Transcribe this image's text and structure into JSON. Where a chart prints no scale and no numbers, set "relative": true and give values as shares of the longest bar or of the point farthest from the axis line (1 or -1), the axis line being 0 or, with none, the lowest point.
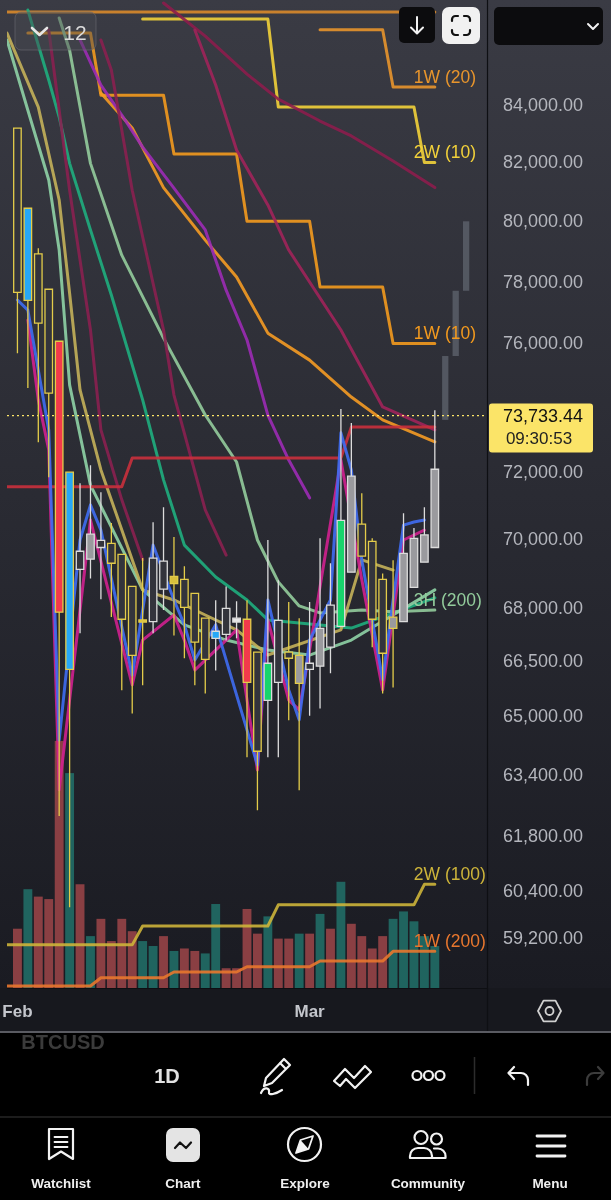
{
  "chart_data": [
    {
      "type": "candlestick",
      "xlim": [
        "--01-31",
        "--03-18"
      ],
      "xticks": [
        {
          "value": "--02-01",
          "label": "Feb"
        },
        {
          "value": "--03-01",
          "label": "Mar"
        }
      ],
      "ylim": [
        57980,
        87790
      ],
      "log": true,
      "yticks": [
        {
          "value": 84000,
          "label": "84,000.00"
        },
        {
          "value": 82000,
          "label": "82,000.00"
        },
        {
          "value": 80000,
          "label": "80,000.00"
        },
        {
          "value": 78000,
          "label": "78,000.00"
        },
        {
          "value": 76000,
          "label": "76,000.00"
        },
        {
          "value": 72000,
          "label": "72,000.00"
        },
        {
          "value": 70000,
          "label": "70,000.00"
        },
        {
          "value": 68000,
          "label": "68,000.00"
        },
        {
          "value": 66500,
          "label": "66,500.00"
        },
        {
          "value": 65000,
          "label": "65,000.00"
        },
        {
          "value": 63400,
          "label": "63,400.00"
        },
        {
          "value": 61800,
          "label": "61,800.00"
        },
        {
          "value": 60400,
          "label": "60,400.00"
        },
        {
          "value": 59200,
          "label": "59,200.00"
        }
      ],
      "ref_lines": [
        {
          "axis": "y",
          "value": 73733.44,
          "label": "73,733.44",
          "color": "#fbe468",
          "line_style": "dotted"
        }
      ],
      "annotations": [
        "12",
        "09:30:53",
        "BTCUSD",
        "1D",
        "Watchlist",
        "Chart",
        "Explore",
        "Community",
        "Menu"
      ],
      "series": [
        {
          "type": "line",
          "color": "#d98a2b",
          "x": [
            "--01-31",
            "--03-13"
          ],
          "values": [
            87350,
            87350
          ]
        },
        {
          "type": "line",
          "name": "1W (20)",
          "color": "#e8952c",
          "x": [
            "--03-02",
            "--03-08",
            "--03-09",
            "--03-13"
          ],
          "values": [
            86700,
            86700,
            84640,
            84640
          ]
        },
        {
          "type": "line",
          "name": "2W (10)",
          "color": "#f2d13a",
          "x": [
            "--02-13",
            "--02-25",
            "--02-26",
            "--03-11",
            "--03-12",
            "--03-13"
          ],
          "values": [
            87090,
            87090,
            83930,
            83930,
            82000,
            82000
          ]
        },
        {
          "type": "line",
          "name": "1W (10)",
          "color": "#f39a1e",
          "x": [
            "--02-02",
            "--02-08",
            "--02-09",
            "--02-15",
            "--02-16",
            "--02-22",
            "--02-23",
            "--03-01",
            "--03-02",
            "--03-08",
            "--03-09",
            "--03-13"
          ],
          "values": [
            86580,
            86580,
            84350,
            84350,
            82290,
            82290,
            80000,
            80000,
            77820,
            77820,
            76000,
            76000
          ]
        },
        {
          "type": "line",
          "color": "#8c1d4c",
          "x": [
            "--02-15",
            "--02-19",
            "--02-23",
            "--02-26",
            "--03-02",
            "--03-05",
            "--03-09",
            "--03-13"
          ],
          "values": [
            87680,
            86470,
            85100,
            84210,
            83440,
            82920,
            82050,
            81140
          ]
        },
        {
          "type": "line",
          "color": "#f59b23",
          "x": [
            "--02-09",
            "--02-12",
            "--02-15",
            "--02-19",
            "--02-22",
            "--02-25",
            "--03-01",
            "--03-05",
            "--03-08",
            "--03-13"
          ],
          "values": [
            84430,
            83200,
            81140,
            79370,
            78150,
            76330,
            75470,
            74310,
            73600,
            72920
          ]
        },
        {
          "type": "line",
          "color": "#9c2bb5",
          "x": [
            "--02-07",
            "--02-09",
            "--02-11",
            "--02-13",
            "--02-16",
            "--02-19",
            "--02-21",
            "--02-23",
            "--02-25",
            "--02-27",
            "--03-01"
          ],
          "values": [
            86330,
            84710,
            83650,
            82530,
            81120,
            79710,
            77720,
            76110,
            73750,
            72370,
            71230
          ]
        },
        {
          "type": "line",
          "color": "#1fae7e",
          "x": [
            "--02-02",
            "--02-04",
            "--02-05",
            "--02-06",
            "--02-08",
            "--02-10",
            "--02-13",
            "--02-15",
            "--02-17",
            "--02-20",
            "--02-23",
            "--02-25",
            "--03-05",
            "--03-13"
          ],
          "values": [
            87420,
            84890,
            83580,
            81970,
            79710,
            77560,
            74220,
            71770,
            69830,
            68900,
            68240,
            67670,
            67440,
            68300
          ]
        },
        {
          "type": "line",
          "name": "3H (200)",
          "color": "#93cc9c",
          "x": [
            "--02-05",
            "--02-06",
            "--02-08",
            "--02-11",
            "--02-15",
            "--02-19",
            "--02-22",
            "--02-24",
            "--02-26",
            "--02-28",
            "--03-02",
            "--03-06",
            "--03-09",
            "--03-13"
          ],
          "values": [
            87130,
            85960,
            81970,
            78870,
            76170,
            73750,
            72310,
            69980,
            68760,
            68070,
            67870,
            67950,
            67900,
            67950
          ]
        },
        {
          "type": "line",
          "color": "#8fd3a6",
          "x": [
            "--01-31",
            "--02-02",
            "--02-04",
            "--02-05",
            "--02-06",
            "--02-08",
            "--02-13",
            "--02-17",
            "--02-21",
            "--02-25",
            "--03-01",
            "--03-05",
            "--03-13"
          ],
          "values": [
            86330,
            83820,
            81400,
            79040,
            74690,
            71610,
            68530,
            67530,
            67100,
            66820,
            66680,
            67100,
            68530
          ]
        },
        {
          "type": "line",
          "color": "#c4b15a",
          "x": [
            "--01-31",
            "--02-03",
            "--02-05",
            "--02-06",
            "--02-07",
            "--02-09",
            "--02-13",
            "--02-16",
            "--02-19",
            "--02-22",
            "--02-25",
            "--03-04",
            "--03-06",
            "--03-09"
          ],
          "values": [
            86580,
            83930,
            80720,
            77620,
            74530,
            72070,
            68530,
            68240,
            67810,
            67390,
            66680,
            67390,
            69400,
            69100
          ]
        },
        {
          "type": "line",
          "color": "#8a2050",
          "x": [
            "--02-04",
            "--02-06",
            "--02-08",
            "--02-09",
            "--02-11",
            "--02-13"
          ],
          "values": [
            86690,
            81050,
            76430,
            73290,
            71170,
            69400
          ]
        },
        {
          "type": "line",
          "color": "#8a2050",
          "x": [
            "--02-09",
            "--02-10",
            "--02-12",
            "--02-15",
            "--02-16",
            "--02-19",
            "--02-21"
          ],
          "values": [
            86330,
            85250,
            81050,
            76430,
            74370,
            70870,
            69540
          ]
        },
        {
          "type": "line",
          "color": "#a0245a",
          "x": [
            "--02-18",
            "--02-20",
            "--02-22",
            "--02-25",
            "--02-27",
            "--03-04",
            "--03-08",
            "--03-13"
          ],
          "values": [
            86690,
            84710,
            82430,
            80550,
            79040,
            76430,
            74000,
            73290
          ]
        },
        {
          "type": "line",
          "color": "#c9303c",
          "x": [
            "--01-31",
            "--02-11",
            "--02-12",
            "--03-04",
            "--03-05",
            "--03-13"
          ],
          "values": [
            71560,
            71560,
            72430,
            72430,
            73380,
            73380
          ]
        },
        {
          "type": "line",
          "color": "#d0208f",
          "x": [
            "--02-02",
            "--02-03",
            "--02-04",
            "--02-05",
            "--02-08",
            "--02-12",
            "--02-13",
            "--02-16",
            "--02-17",
            "--02-18",
            "--02-21",
            "--02-22",
            "--02-24",
            "--02-25",
            "--02-27",
            "--02-28",
            "--03-01",
            "--03-04",
            "--03-06",
            "--03-08",
            "--03-10",
            "--03-12"
          ],
          "values": [
            76750,
            74220,
            72680,
            63010,
            70570,
            65850,
            67100,
            67810,
            67100,
            66260,
            67100,
            67390,
            63540,
            67670,
            65430,
            65160,
            66820,
            72370,
            68820,
            65710,
            69980,
            70270
          ]
        },
        {
          "type": "line",
          "color": "#3f6df2",
          "x": [
            "--02-01",
            "--02-02",
            "--02-03",
            "--02-04",
            "--02-05",
            "--02-07",
            "--02-08",
            "--02-09",
            "--02-12",
            "--02-14",
            "--02-16",
            "--02-17",
            "--02-18",
            "--02-20",
            "--02-24",
            "--02-25",
            "--02-27",
            "--02-28",
            "--03-01",
            "--03-03",
            "--03-04",
            "--03-05",
            "--03-06",
            "--03-08",
            "--03-09",
            "--03-10",
            "--03-11",
            "--03-12"
          ],
          "values": [
            77400,
            77070,
            75160,
            73290,
            64340,
            69980,
            71020,
            70270,
            66120,
            69830,
            68240,
            67530,
            66540,
            67530,
            63670,
            68240,
            65710,
            64890,
            67100,
            68240,
            73200,
            72070,
            69400,
            65990,
            68240,
            70420,
            70510,
            70570
          ]
        },
        {
          "type": "line",
          "name": "2W (100)",
          "color": "#cdb43a",
          "x": [
            "--01-31",
            "--02-12",
            "--02-13",
            "--02-25",
            "--02-26",
            "--03-11",
            "--03-12",
            "--03-13"
          ],
          "values": [
            59040,
            59040,
            59510,
            59510,
            60040,
            60040,
            60560,
            60560
          ]
        },
        {
          "type": "line",
          "name": "1W (200)",
          "color": "#e8772e",
          "x": [
            "--01-31",
            "--02-08",
            "--02-09",
            "--02-15",
            "--02-16",
            "--02-22",
            "--02-23",
            "--03-01",
            "--03-02",
            "--03-08",
            "--03-09",
            "--03-13"
          ],
          "values": [
            58030,
            58030,
            58230,
            58230,
            58370,
            58370,
            58500,
            58500,
            58640,
            58640,
            58880,
            58880
          ]
        },
        {
          "type": "bar",
          "color": "#5d616c",
          "x": [
            "--03-14",
            "--03-15",
            "--03-16"
          ],
          "base": [
            73600,
            75600,
            77700
          ],
          "values": [
            2000,
            2100,
            2300
          ]
        },
        {
          "color": "#e3cc4a",
          "x": [
            "--02-01",
            "--02-02",
            "--02-03",
            "--02-04",
            "--02-05",
            "--02-06",
            "--02-10",
            "--02-11",
            "--02-12",
            "--02-13",
            "--02-16",
            "--02-17",
            "--02-18",
            "--02-19",
            "--02-23",
            "--02-24",
            "--02-27",
            "--02-28",
            "--03-06",
            "--03-07",
            "--03-08",
            "--03-09"
          ],
          "ohlc": [
            [
              83190,
              83190,
              75690,
              77650
            ],
            [
              77390,
              80440,
              74590,
              80440
            ],
            [
              78910,
              79100,
              72910,
              76650
            ],
            [
              77750,
              77750,
              71850,
              74430
            ],
            [
              76070,
              76070,
              62320,
              67890
            ],
            [
              66280,
              72000,
              59980,
              72000
            ],
            [
              69880,
              70480,
              67750,
              69300
            ],
            [
              69560,
              69560,
              65700,
              67690
            ],
            [
              68630,
              68630,
              65060,
              66670
            ],
            [
              67670,
              69450,
              65840,
              67610
            ],
            [
              68920,
              70070,
              67230,
              68710
            ],
            [
              68830,
              69210,
              66590,
              68030
            ],
            [
              68430,
              68430,
              65840,
              67040
            ],
            [
              67720,
              67720,
              65610,
              66560
            ],
            [
              67690,
              68230,
              63880,
              65920
            ],
            [
              66760,
              66760,
              62470,
              64040
            ],
            [
              66760,
              68180,
              64880,
              66590
            ],
            [
              65890,
              67720,
              63000,
              66670
            ],
            [
              70450,
              71370,
              69510,
              69510
            ],
            [
              69940,
              70030,
              66900,
              67690
            ],
            [
              68830,
              69000,
              65610,
              66730
            ],
            [
              67430,
              69390,
              65780,
              67750
            ]
          ],
          "colors": [
            "#33343c",
            "#26a8f7",
            "#33343c",
            "#33343c",
            "#f23a4c",
            "#26a8f7",
            "#33343c",
            "#33343c",
            "#33343c",
            "#d8c03c",
            "#d8c03c",
            "#33343c",
            "#33343c",
            "#33343c",
            "#f23a4c",
            "#33343c",
            "#33343c",
            "#9a9a9e",
            "#33343c",
            "#33343c",
            "#33343c",
            "#9a9a9e"
          ]
        },
        {
          "color": "#dcdcdc",
          "x": [
            "--02-07",
            "--02-08",
            "--02-09",
            "--02-14",
            "--02-15",
            "--02-20",
            "--02-21",
            "--02-22",
            "--02-25",
            "--02-26",
            "--03-01",
            "--03-02",
            "--03-03",
            "--03-04",
            "--03-05",
            "--03-10",
            "--03-11",
            "--03-12",
            "--03-13"
          ],
          "ohlc": [
            [
              69650,
              71670,
              67290,
              69120
            ],
            [
              69420,
              72210,
              68860,
              70150
            ],
            [
              69970,
              71400,
              68260,
              69760
            ],
            [
              69450,
              70500,
              67290,
              67620
            ],
            [
              69360,
              70950,
              67950,
              68550
            ],
            [
              67150,
              68230,
              66250,
              67350
            ],
            [
              68000,
              68630,
              67090,
              67260
            ],
            [
              67610,
              68200,
              67150,
              67720
            ],
            [
              65420,
              69980,
              63880,
              66450
            ],
            [
              67660,
              68810,
              63880,
              65920
            ],
            [
              66450,
              68180,
              65000,
              66280
            ],
            [
              66370,
              70030,
              65200,
              67430
            ],
            [
              68090,
              69300,
              66170,
              66900
            ],
            [
              67490,
              73940,
              67490,
              70560
            ],
            [
              69040,
              73500,
              69040,
              71880
            ],
            [
              67620,
              70770,
              67620,
              69590
            ],
            [
              68600,
              70330,
              68600,
              70030
            ],
            [
              69330,
              70950,
              69330,
              70130
            ],
            [
              69760,
              73900,
              69760,
              72090
            ]
          ],
          "colors": [
            "#33343c",
            "#9a9a9e",
            "#33343c",
            "#33343c",
            "#33343c",
            "#26a8f7",
            "#33343c",
            "#e6e6e6",
            "#18d46c",
            "#33343c",
            "#33343c",
            "#9a9a9e",
            "#33343c",
            "#18d46c",
            "#9a9a9e",
            "#9a9a9e",
            "#9a9a9e",
            "#9a9a9e",
            "#9a9a9e"
          ]
        }
      ]
    },
    {
      "type": "bar",
      "relative": true,
      "xlim": [
        "--01-31",
        "--03-18"
      ],
      "x": [
        "--02-01",
        "--02-02",
        "--02-03",
        "--02-04",
        "--02-05",
        "--02-06",
        "--02-07",
        "--02-08",
        "--02-09",
        "--02-10",
        "--02-11",
        "--02-12",
        "--02-13",
        "--02-14",
        "--02-15",
        "--02-16",
        "--02-17",
        "--02-18",
        "--02-19",
        "--02-20",
        "--02-21",
        "--02-22",
        "--02-23",
        "--02-24",
        "--02-25",
        "--02-26",
        "--02-27",
        "--02-28",
        "--03-01",
        "--03-02",
        "--03-03",
        "--03-04",
        "--03-05",
        "--03-06",
        "--03-07",
        "--03-08",
        "--03-09",
        "--03-10",
        "--03-11",
        "--03-12",
        "--03-13"
      ],
      "values": [
        0.24,
        0.4,
        0.37,
        0.36,
        1,
        0.87,
        0.42,
        0.21,
        0.28,
        0.19,
        0.28,
        0.23,
        0.19,
        0.17,
        0.21,
        0.15,
        0.16,
        0.15,
        0.14,
        0.34,
        0.08,
        0.08,
        0.32,
        0.22,
        0.29,
        0.2,
        0.2,
        0.22,
        0.22,
        0.3,
        0.24,
        0.43,
        0.26,
        0.21,
        0.16,
        0.21,
        0.28,
        0.31,
        0.27,
        0.21,
        0.17
      ],
      "colors": [
        "#9d4549",
        "#21716a",
        "#9d4549",
        "#9d4549",
        "#9d4549",
        "#21716a",
        "#9d4549",
        "#21716a",
        "#9d4549",
        "#9d4549",
        "#9d4549",
        "#9d4549",
        "#21716a",
        "#21716a",
        "#9d4549",
        "#21716a",
        "#9d4549",
        "#9d4549",
        "#21716a",
        "#21716a",
        "#9d4549",
        "#9d4549",
        "#9d4549",
        "#9d4549",
        "#21716a",
        "#9d4549",
        "#9d4549",
        "#21716a",
        "#9d4549",
        "#21716a",
        "#9d4549",
        "#21716a",
        "#9d4549",
        "#9d4549",
        "#9d4549",
        "#9d4549",
        "#21716a",
        "#21716a",
        "#21716a",
        "#21716a",
        "#21716a"
      ]
    }
  ]
}
